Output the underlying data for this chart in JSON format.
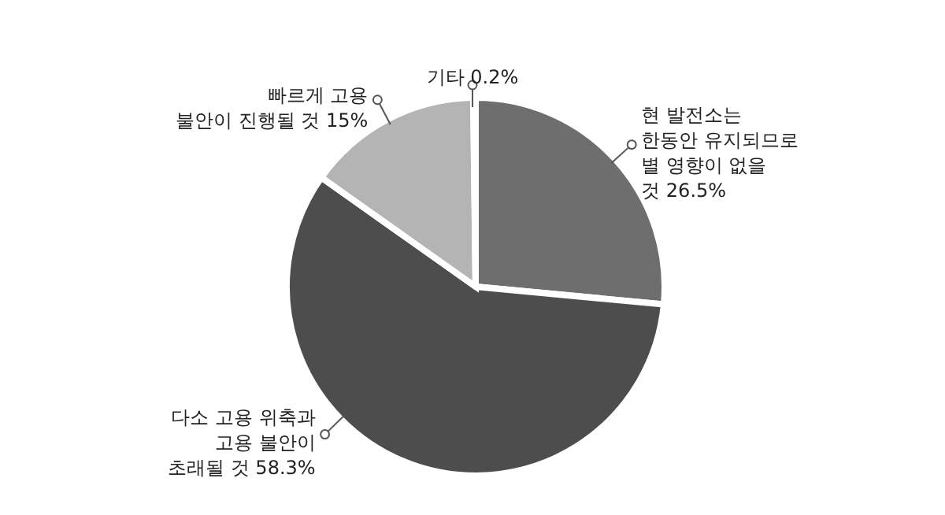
{
  "chart_data": {
    "type": "pie",
    "categories": [
      "현 발전소는 한동안 유지되므로 별 영향이 없을 것",
      "다소 고용 위축과 고용 불안이 초래될 것",
      "빠르게 고용 불안이 진행될 것",
      "기타"
    ],
    "values": [
      26.5,
      58.3,
      15,
      0.2
    ],
    "value_labels": [
      "26.5%",
      "58.3%",
      "15%",
      "0.2%"
    ],
    "colors": [
      "#6e6e6e",
      "#4d4d4d",
      "#b4b4b4",
      "#d9d9d9"
    ]
  }
}
